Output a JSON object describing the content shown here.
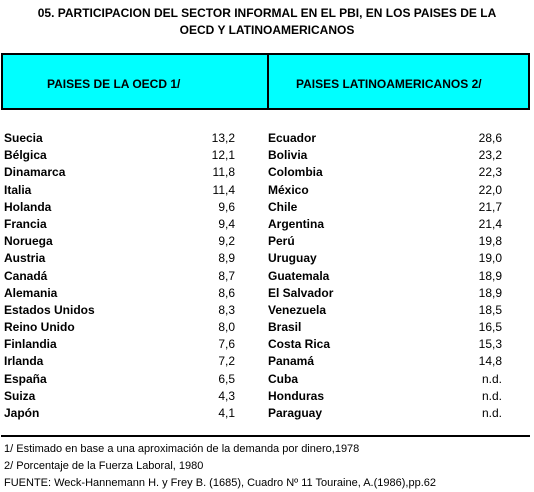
{
  "title_line1": "05. PARTICIPACION DEL SECTOR INFORMAL EN EL PBI, EN  LOS  PAISES DE LA",
  "title_line2": "OECD Y LATINOAMERICANOS",
  "header": {
    "left": "PAISES DE LA OECD 1/",
    "right": "PAISES LATINOAMERICANOS 2/"
  },
  "rows": [
    {
      "oecd": "Suecia",
      "oecd_val": "13,2",
      "lat": "Ecuador",
      "lat_val": "28,6"
    },
    {
      "oecd": "Bélgica",
      "oecd_val": "12,1",
      "lat": "Bolivia",
      "lat_val": "23,2"
    },
    {
      "oecd": "Dinamarca",
      "oecd_val": "11,8",
      "lat": "Colombia",
      "lat_val": "22,3"
    },
    {
      "oecd": "Italia",
      "oecd_val": "11,4",
      "lat": "México",
      "lat_val": "22,0"
    },
    {
      "oecd": "Holanda",
      "oecd_val": "9,6",
      "lat": "Chile",
      "lat_val": "21,7"
    },
    {
      "oecd": "Francia",
      "oecd_val": "9,4",
      "lat": "Argentina",
      "lat_val": "21,4"
    },
    {
      "oecd": "Noruega",
      "oecd_val": "9,2",
      "lat": "Perú",
      "lat_val": "19,8"
    },
    {
      "oecd": "Austria",
      "oecd_val": "8,9",
      "lat": "Uruguay",
      "lat_val": "19,0"
    },
    {
      "oecd": "Canadá",
      "oecd_val": "8,7",
      "lat": "Guatemala",
      "lat_val": "18,9"
    },
    {
      "oecd": "Alemania",
      "oecd_val": "8,6",
      "lat": "El Salvador",
      "lat_val": "18,9"
    },
    {
      "oecd": "Estados Unidos",
      "oecd_val": "8,3",
      "lat": "Venezuela",
      "lat_val": "18,5"
    },
    {
      "oecd": "Reino Unido",
      "oecd_val": "8,0",
      "lat": "Brasil",
      "lat_val": "16,5"
    },
    {
      "oecd": "Finlandia",
      "oecd_val": "7,6",
      "lat": "Costa Rica",
      "lat_val": "15,3"
    },
    {
      "oecd": "Irlanda",
      "oecd_val": "7,2",
      "lat": "Panamá",
      "lat_val": "14,8"
    },
    {
      "oecd": "España",
      "oecd_val": "6,5",
      "lat": "Cuba",
      "lat_val": "n.d."
    },
    {
      "oecd": "Suiza",
      "oecd_val": "4,3",
      "lat": "Honduras",
      "lat_val": "n.d."
    },
    {
      "oecd": "Japón",
      "oecd_val": "4,1",
      "lat": "Paraguay",
      "lat_val": "n.d."
    }
  ],
  "notes": [
    "1/ Estimado en base a una aproximación de la demanda por dinero,1978",
    "2/ Porcentaje de la Fuerza Laboral, 1980",
    "FUENTE: Weck-Hannemann H. y Frey B. (1685), Cuadro Nº 11 Touraine, A.(1986),pp.62"
  ],
  "colors": {
    "header_bg": "#00ffff"
  }
}
